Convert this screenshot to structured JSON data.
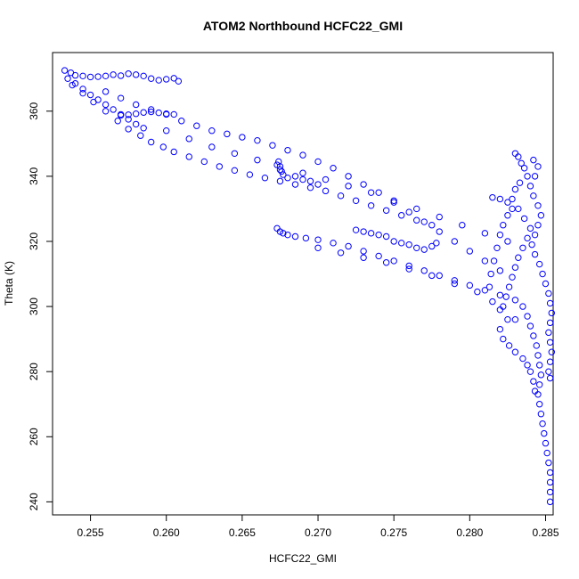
{
  "chart_data": {
    "type": "scatter",
    "title": "ATOM2 Northbound HCFC22_GMI",
    "xlabel": "HCFC22_GMI",
    "ylabel": "Theta (K)",
    "xlim": [
      0.2525,
      0.2855
    ],
    "ylim": [
      236,
      378
    ],
    "xticks": [
      0.255,
      0.26,
      0.265,
      0.27,
      0.275,
      0.28,
      0.285
    ],
    "xtick_labels": [
      "0.255",
      "0.260",
      "0.265",
      "0.270",
      "0.275",
      "0.280",
      "0.285"
    ],
    "yticks": [
      240,
      260,
      280,
      300,
      320,
      340,
      360
    ],
    "ytick_labels": [
      "240",
      "260",
      "280",
      "300",
      "320",
      "340",
      "360"
    ],
    "grid": false,
    "marker": "open-circle",
    "color": "#0000ff",
    "series": [
      {
        "name": "",
        "points": [
          [
            0.2533,
            372.5
          ],
          [
            0.2537,
            371.8
          ],
          [
            0.254,
            371.0
          ],
          [
            0.2545,
            370.8
          ],
          [
            0.255,
            370.5
          ],
          [
            0.2555,
            370.6
          ],
          [
            0.256,
            370.8
          ],
          [
            0.2565,
            371.2
          ],
          [
            0.257,
            370.9
          ],
          [
            0.2575,
            371.5
          ],
          [
            0.258,
            371.2
          ],
          [
            0.2585,
            370.8
          ],
          [
            0.259,
            370.0
          ],
          [
            0.2595,
            369.5
          ],
          [
            0.26,
            369.8
          ],
          [
            0.2605,
            370.1
          ],
          [
            0.2608,
            369.2
          ],
          [
            0.2535,
            370.0
          ],
          [
            0.254,
            368.5
          ],
          [
            0.2545,
            366.8
          ],
          [
            0.255,
            365.0
          ],
          [
            0.2555,
            363.5
          ],
          [
            0.256,
            362.0
          ],
          [
            0.2565,
            360.5
          ],
          [
            0.257,
            359.0
          ],
          [
            0.2575,
            357.5
          ],
          [
            0.258,
            356.0
          ],
          [
            0.2585,
            354.8
          ],
          [
            0.257,
            358.7
          ],
          [
            0.2575,
            358.9
          ],
          [
            0.258,
            359.2
          ],
          [
            0.2585,
            359.6
          ],
          [
            0.259,
            359.8
          ],
          [
            0.2595,
            359.5
          ],
          [
            0.26,
            359.2
          ],
          [
            0.2605,
            359.0
          ],
          [
            0.2538,
            368.0
          ],
          [
            0.2545,
            365.5
          ],
          [
            0.2552,
            362.8
          ],
          [
            0.256,
            360.0
          ],
          [
            0.2568,
            357.0
          ],
          [
            0.2575,
            354.5
          ],
          [
            0.2583,
            352.5
          ],
          [
            0.259,
            350.5
          ],
          [
            0.2598,
            349.0
          ],
          [
            0.2605,
            347.5
          ],
          [
            0.2615,
            346.0
          ],
          [
            0.2625,
            344.5
          ],
          [
            0.2635,
            343.0
          ],
          [
            0.2645,
            341.8
          ],
          [
            0.2655,
            340.5
          ],
          [
            0.2665,
            339.5
          ],
          [
            0.2675,
            338.5
          ],
          [
            0.2685,
            337.5
          ],
          [
            0.2695,
            336.5
          ],
          [
            0.2705,
            335.5
          ],
          [
            0.2715,
            334.0
          ],
          [
            0.2725,
            332.5
          ],
          [
            0.2735,
            331.0
          ],
          [
            0.2745,
            329.5
          ],
          [
            0.2755,
            328.0
          ],
          [
            0.2765,
            326.5
          ],
          [
            0.2775,
            325.0
          ],
          [
            0.256,
            366.0
          ],
          [
            0.257,
            364.0
          ],
          [
            0.258,
            362.0
          ],
          [
            0.259,
            360.5
          ],
          [
            0.26,
            359.0
          ],
          [
            0.261,
            357.0
          ],
          [
            0.262,
            355.5
          ],
          [
            0.263,
            354.0
          ],
          [
            0.264,
            353.0
          ],
          [
            0.265,
            352.0
          ],
          [
            0.266,
            351.0
          ],
          [
            0.267,
            349.5
          ],
          [
            0.268,
            348.0
          ],
          [
            0.269,
            346.5
          ],
          [
            0.27,
            344.5
          ],
          [
            0.271,
            342.5
          ],
          [
            0.272,
            340.0
          ],
          [
            0.273,
            337.5
          ],
          [
            0.274,
            335.0
          ],
          [
            0.275,
            332.0
          ],
          [
            0.276,
            329.0
          ],
          [
            0.277,
            326.0
          ],
          [
            0.278,
            323.0
          ],
          [
            0.279,
            320.0
          ],
          [
            0.28,
            317.0
          ],
          [
            0.281,
            314.0
          ],
          [
            0.282,
            311.0
          ],
          [
            0.26,
            354.0
          ],
          [
            0.2615,
            351.5
          ],
          [
            0.263,
            349.0
          ],
          [
            0.2645,
            347.0
          ],
          [
            0.266,
            345.0
          ],
          [
            0.2675,
            343.0
          ],
          [
            0.269,
            341.0
          ],
          [
            0.2705,
            339.0
          ],
          [
            0.272,
            337.0
          ],
          [
            0.2735,
            335.0
          ],
          [
            0.275,
            332.5
          ],
          [
            0.2765,
            330.0
          ],
          [
            0.278,
            327.5
          ],
          [
            0.2795,
            325.0
          ],
          [
            0.281,
            322.5
          ],
          [
            0.2825,
            320.0
          ],
          [
            0.2673,
            343.5
          ],
          [
            0.2675,
            342.0
          ],
          [
            0.2677,
            340.5
          ],
          [
            0.268,
            339.5
          ],
          [
            0.2685,
            340.0
          ],
          [
            0.269,
            339.0
          ],
          [
            0.2695,
            338.5
          ],
          [
            0.27,
            337.5
          ],
          [
            0.2674,
            344.5
          ],
          [
            0.2676,
            341.5
          ],
          [
            0.2673,
            324.0
          ],
          [
            0.2675,
            323.0
          ],
          [
            0.2677,
            322.5
          ],
          [
            0.268,
            322.0
          ],
          [
            0.2685,
            321.5
          ],
          [
            0.2692,
            321.0
          ],
          [
            0.27,
            320.5
          ],
          [
            0.271,
            319.5
          ],
          [
            0.272,
            318.5
          ],
          [
            0.273,
            317.0
          ],
          [
            0.274,
            315.5
          ],
          [
            0.275,
            314.0
          ],
          [
            0.276,
            312.5
          ],
          [
            0.277,
            311.0
          ],
          [
            0.278,
            309.5
          ],
          [
            0.279,
            308.0
          ],
          [
            0.28,
            306.5
          ],
          [
            0.281,
            305.0
          ],
          [
            0.282,
            303.5
          ],
          [
            0.283,
            302.0
          ],
          [
            0.2725,
            323.5
          ],
          [
            0.273,
            323.0
          ],
          [
            0.2735,
            322.5
          ],
          [
            0.274,
            322.0
          ],
          [
            0.2745,
            321.5
          ],
          [
            0.275,
            320.0
          ],
          [
            0.2755,
            319.5
          ],
          [
            0.276,
            319.0
          ],
          [
            0.2765,
            318.0
          ],
          [
            0.277,
            317.5
          ],
          [
            0.2775,
            318.5
          ],
          [
            0.2778,
            319.5
          ],
          [
            0.27,
            318.0
          ],
          [
            0.2715,
            316.5
          ],
          [
            0.273,
            315.0
          ],
          [
            0.2745,
            313.5
          ],
          [
            0.276,
            311.5
          ],
          [
            0.2775,
            309.5
          ],
          [
            0.279,
            307.0
          ],
          [
            0.2805,
            304.5
          ],
          [
            0.2815,
            301.5
          ],
          [
            0.282,
            299.0
          ],
          [
            0.283,
            296.0
          ],
          [
            0.2815,
            333.5
          ],
          [
            0.282,
            333.0
          ],
          [
            0.2825,
            332.0
          ],
          [
            0.2828,
            330.0
          ],
          [
            0.2825,
            328.0
          ],
          [
            0.2822,
            325.0
          ],
          [
            0.282,
            322.0
          ],
          [
            0.2818,
            318.0
          ],
          [
            0.2816,
            314.0
          ],
          [
            0.2814,
            310.0
          ],
          [
            0.2813,
            306.0
          ],
          [
            0.283,
            347.0
          ],
          [
            0.2832,
            346.0
          ],
          [
            0.2834,
            344.0
          ],
          [
            0.2836,
            342.5
          ],
          [
            0.2838,
            340.0
          ],
          [
            0.2833,
            338.0
          ],
          [
            0.283,
            336.0
          ],
          [
            0.2828,
            333.0
          ],
          [
            0.2832,
            330.0
          ],
          [
            0.2836,
            327.0
          ],
          [
            0.284,
            324.0
          ],
          [
            0.2838,
            321.0
          ],
          [
            0.2835,
            318.0
          ],
          [
            0.2832,
            315.0
          ],
          [
            0.283,
            312.0
          ],
          [
            0.2828,
            309.0
          ],
          [
            0.2826,
            306.0
          ],
          [
            0.2824,
            303.0
          ],
          [
            0.2822,
            300.0
          ],
          [
            0.2842,
            345.0
          ],
          [
            0.2845,
            343.0
          ],
          [
            0.2843,
            340.0
          ],
          [
            0.284,
            337.0
          ],
          [
            0.2842,
            334.0
          ],
          [
            0.2845,
            331.0
          ],
          [
            0.2847,
            328.0
          ],
          [
            0.2845,
            325.0
          ],
          [
            0.2843,
            322.0
          ],
          [
            0.2841,
            319.0
          ],
          [
            0.2843,
            316.0
          ],
          [
            0.2846,
            313.0
          ],
          [
            0.2848,
            310.0
          ],
          [
            0.285,
            307.0
          ],
          [
            0.2852,
            304.0
          ],
          [
            0.2853,
            301.0
          ],
          [
            0.2854,
            298.0
          ],
          [
            0.2853,
            295.0
          ],
          [
            0.2852,
            292.0
          ],
          [
            0.2853,
            289.0
          ],
          [
            0.2854,
            286.0
          ],
          [
            0.2853,
            283.0
          ],
          [
            0.2852,
            280.0
          ],
          [
            0.2853,
            278.0
          ],
          [
            0.2835,
            300.0
          ],
          [
            0.2838,
            297.0
          ],
          [
            0.284,
            294.0
          ],
          [
            0.2842,
            291.0
          ],
          [
            0.2844,
            288.0
          ],
          [
            0.2845,
            285.0
          ],
          [
            0.2846,
            282.0
          ],
          [
            0.2847,
            279.0
          ],
          [
            0.2846,
            276.0
          ],
          [
            0.2845,
            273.0
          ],
          [
            0.2846,
            270.0
          ],
          [
            0.2847,
            267.0
          ],
          [
            0.2848,
            264.0
          ],
          [
            0.2849,
            261.0
          ],
          [
            0.285,
            258.0
          ],
          [
            0.2851,
            255.0
          ],
          [
            0.2852,
            252.0
          ],
          [
            0.2853,
            249.0
          ],
          [
            0.2853,
            246.0
          ],
          [
            0.2853,
            243.0
          ],
          [
            0.2853,
            240.0
          ],
          [
            0.2825,
            296.0
          ],
          [
            0.282,
            293.0
          ],
          [
            0.2822,
            290.0
          ],
          [
            0.2826,
            288.0
          ],
          [
            0.283,
            286.0
          ],
          [
            0.2835,
            284.0
          ],
          [
            0.2838,
            282.0
          ],
          [
            0.284,
            280.0
          ],
          [
            0.2842,
            277.0
          ],
          [
            0.2843,
            274.0
          ]
        ]
      }
    ]
  }
}
